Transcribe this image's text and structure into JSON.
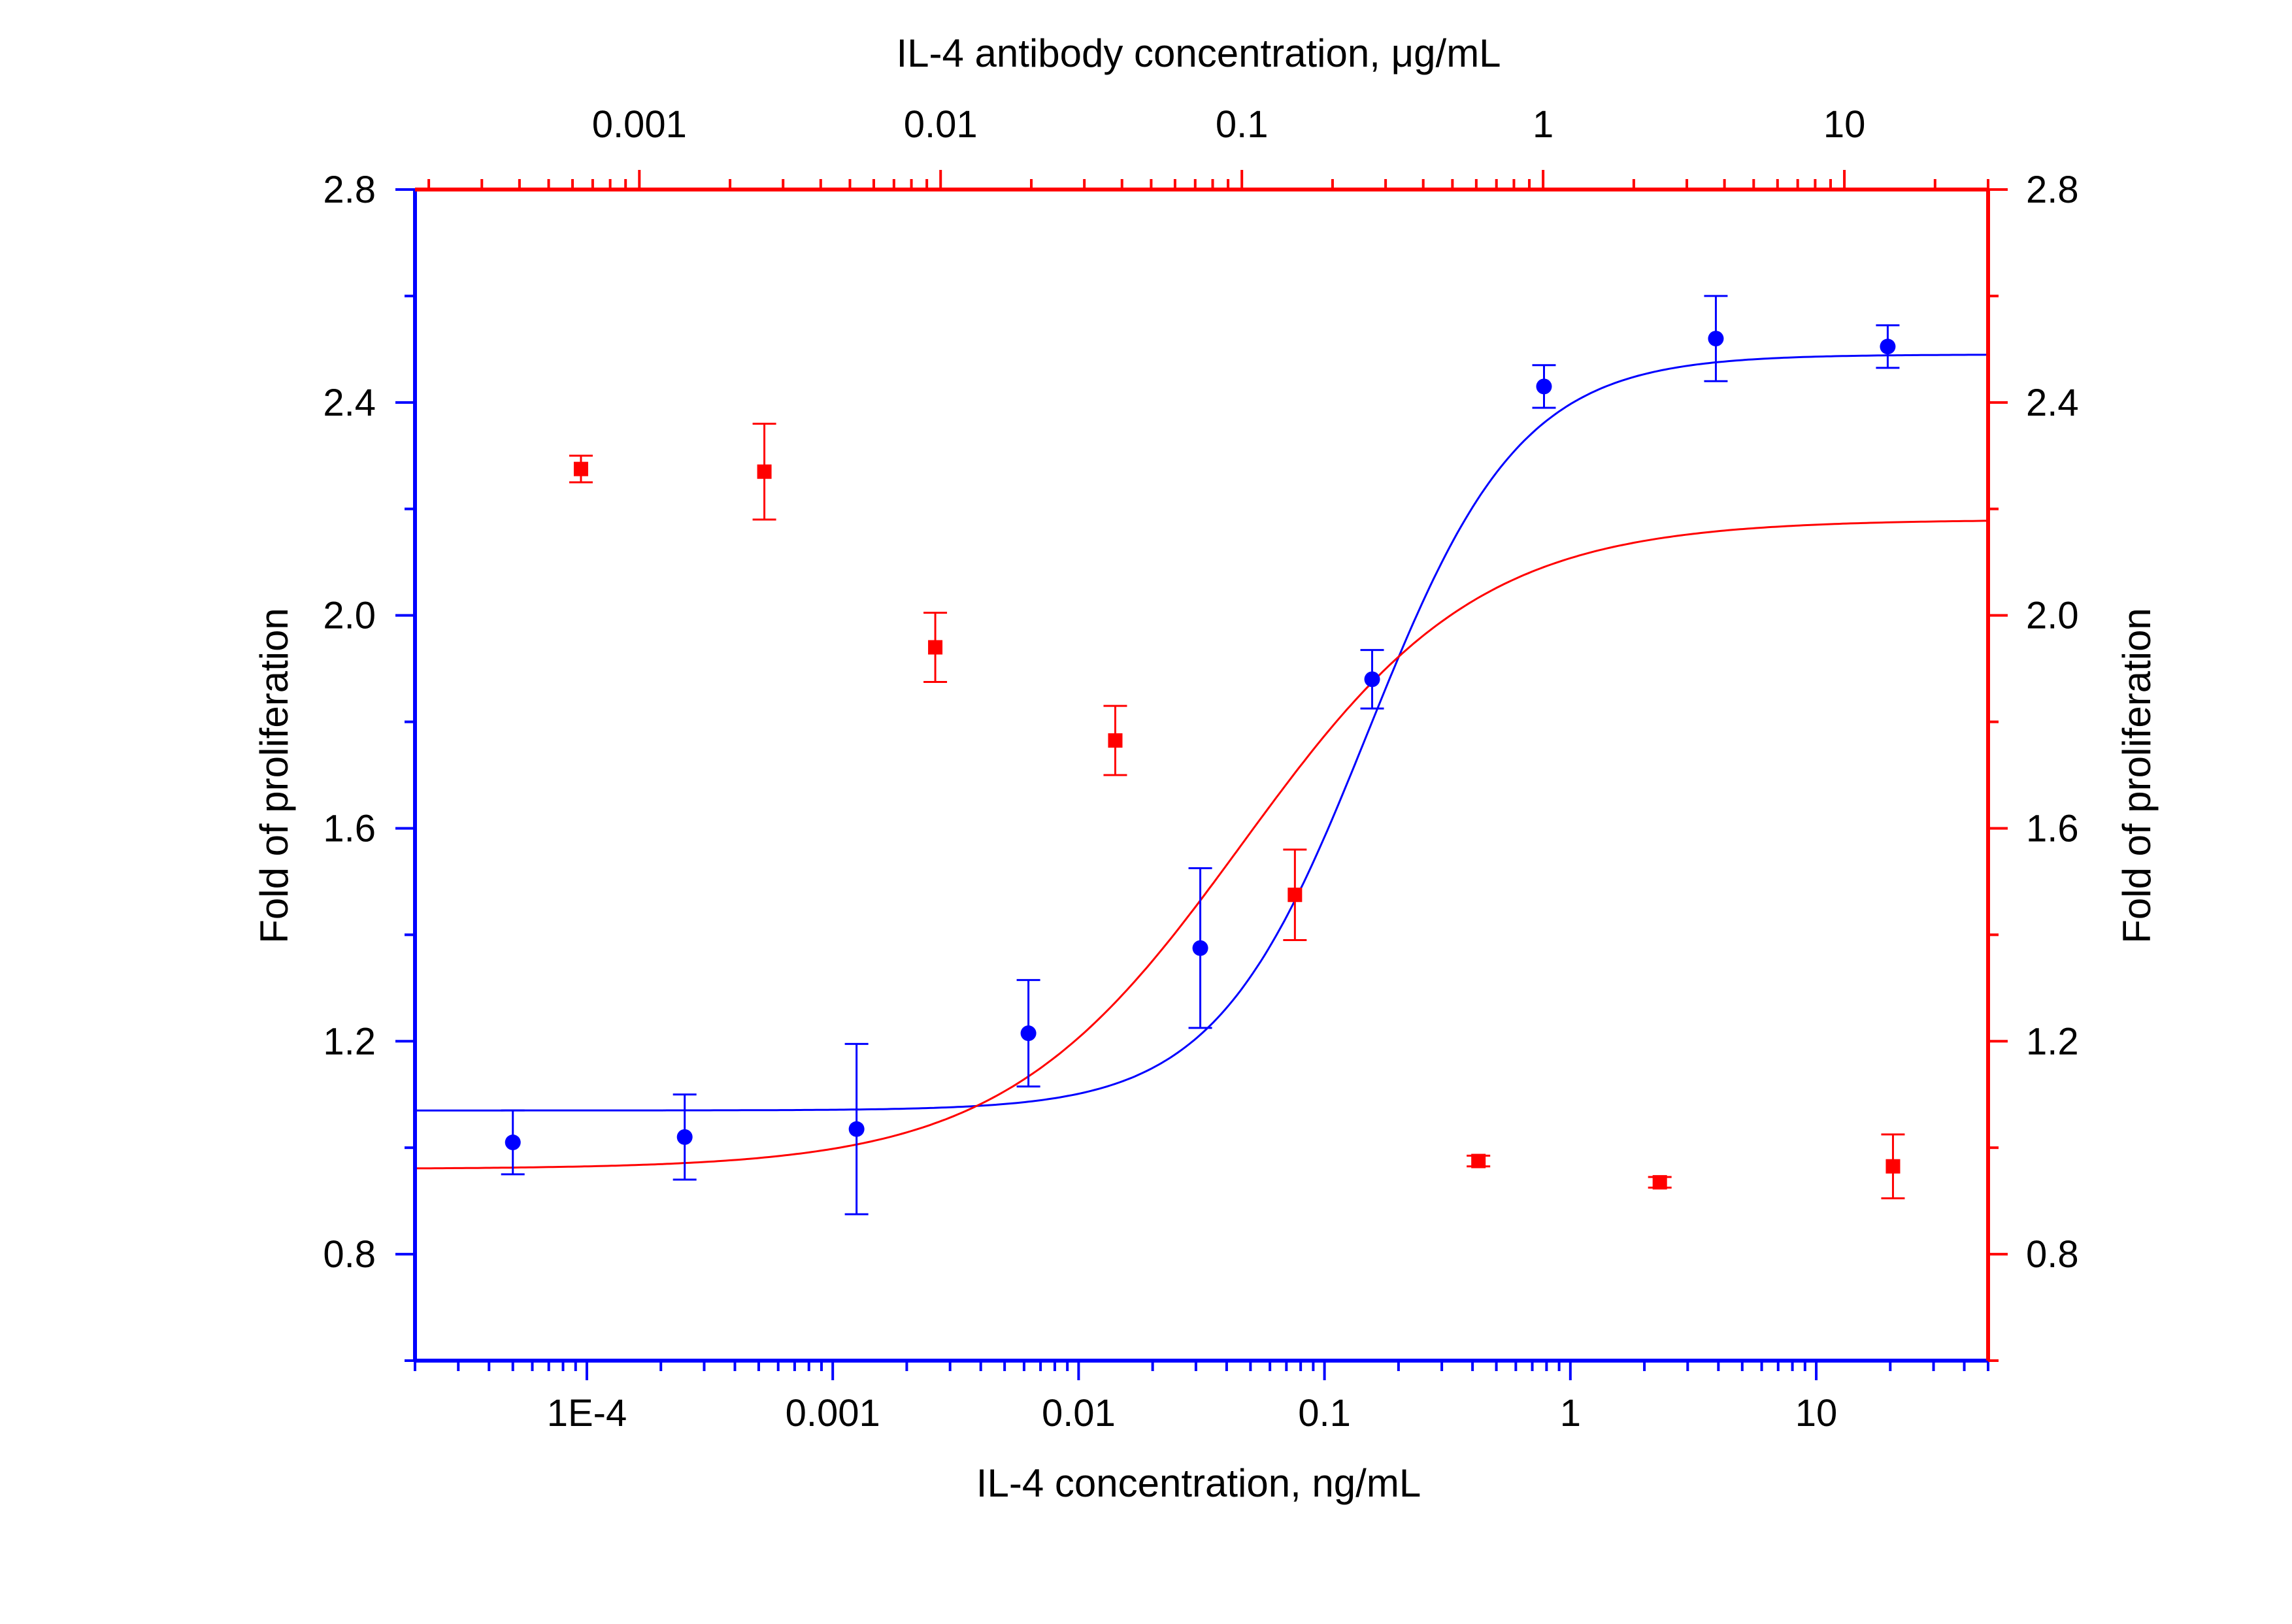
{
  "chart_data": {
    "type": "scatter",
    "title": "",
    "bottom_axis": {
      "label": "IL-4 concentration, ng/mL",
      "scale": "log",
      "range": [
        2e-05,
        50
      ],
      "ticks": [
        {
          "value": 0.0001,
          "label": "1E-4"
        },
        {
          "value": 0.001,
          "label": "0.001"
        },
        {
          "value": 0.01,
          "label": "0.01"
        },
        {
          "value": 0.1,
          "label": "0.1"
        },
        {
          "value": 1,
          "label": "1"
        },
        {
          "value": 10,
          "label": "10"
        }
      ],
      "color": "#0000ff"
    },
    "top_axis": {
      "label": "IL-4 antibody concentration, μg/mL",
      "scale": "log",
      "range": [
        0.00018,
        30
      ],
      "ticks": [
        {
          "value": 0.001,
          "label": "0.001"
        },
        {
          "value": 0.01,
          "label": "0.01"
        },
        {
          "value": 0.1,
          "label": "0.1"
        },
        {
          "value": 1,
          "label": "1"
        },
        {
          "value": 10,
          "label": "10"
        }
      ],
      "color": "#ff0000"
    },
    "left_axis": {
      "label": "Fold of proliferation",
      "range": [
        0.6,
        2.8
      ],
      "ticks": [
        "0.8",
        "1.2",
        "1.6",
        "2.0",
        "2.4",
        "2.8"
      ],
      "color": "#0000ff"
    },
    "right_axis": {
      "label": "Fold of proliferation",
      "range": [
        0.6,
        2.8
      ],
      "ticks": [
        "0.8",
        "1.2",
        "1.6",
        "2.0",
        "2.4",
        "2.8"
      ],
      "color": "#ff0000"
    },
    "grid": false,
    "legend": "none",
    "series": [
      {
        "axis": "bottom",
        "color": "#0000ff",
        "marker": "circle",
        "x": [
          5e-05,
          0.00025,
          0.00125,
          0.00625,
          0.03125,
          0.15625,
          0.78125,
          3.90625,
          19.53125
        ],
        "y": [
          1.01,
          1.02,
          1.035,
          1.215,
          1.375,
          1.88,
          2.43,
          2.52,
          2.505
        ],
        "err": [
          0.06,
          0.08,
          0.16,
          0.1,
          0.15,
          0.055,
          0.04,
          0.08,
          0.04
        ],
        "fit": {
          "bottom": 1.07,
          "top": 2.49,
          "ec50": 0.15,
          "hill": 1.4
        }
      },
      {
        "axis": "top",
        "color": "#ff0000",
        "marker": "square",
        "x": [
          0.00064,
          0.0026,
          0.0096,
          0.038,
          0.15,
          0.61,
          2.44,
          14.5
        ],
        "y": [
          2.275,
          2.27,
          1.94,
          1.765,
          1.475,
          0.975,
          0.935,
          0.965
        ],
        "err": [
          0.025,
          0.09,
          0.065,
          0.065,
          0.085,
          0.01,
          0.01,
          0.06
        ],
        "fit": {
          "bottom": 0.96,
          "top": 2.18,
          "ec50": 0.1,
          "hill": 1.1
        }
      }
    ]
  }
}
